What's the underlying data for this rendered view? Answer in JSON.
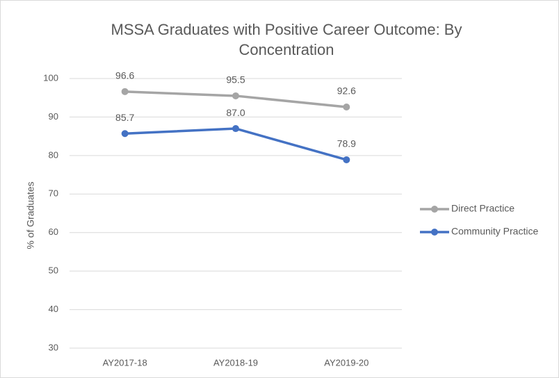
{
  "chart_data": {
    "type": "line",
    "title": "MSSA Graduates with Positive Career Outcome: By Concentration",
    "ylabel": "% of Graduates",
    "categories": [
      "AY2017-18",
      "AY2018-19",
      "AY2019-20"
    ],
    "series": [
      {
        "name": "Direct Practice",
        "color": "#a5a5a5",
        "values": [
          96.6,
          95.5,
          92.6
        ],
        "value_labels": [
          "96.6",
          "95.5",
          "92.6"
        ]
      },
      {
        "name": "Community Practice",
        "color": "#4472c4",
        "values": [
          85.7,
          87.0,
          78.9
        ],
        "value_labels": [
          "85.7",
          "87.0",
          "78.9"
        ]
      }
    ],
    "ylim": [
      30,
      100
    ],
    "yticks": [
      30,
      40,
      50,
      60,
      70,
      80,
      90,
      100
    ],
    "grid": true,
    "legend": "right"
  }
}
